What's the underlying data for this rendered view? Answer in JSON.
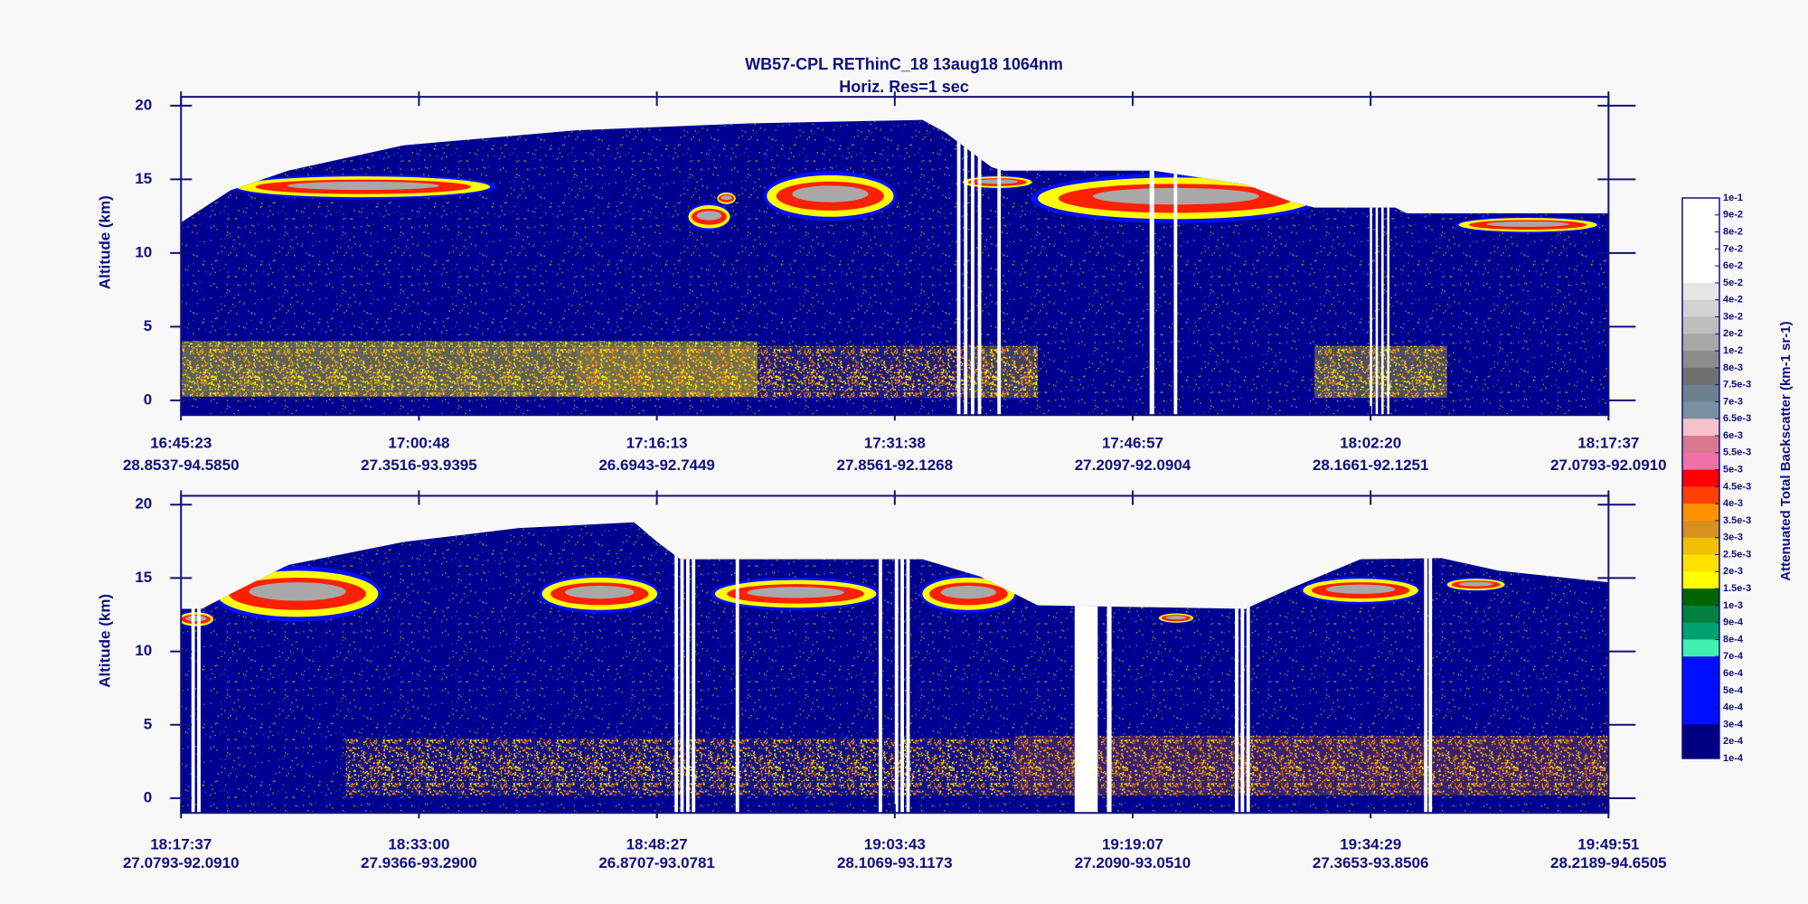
{
  "chart_data": {
    "type": "heatmap",
    "title": "WB57-CPL  REThinC_18  13aug18  1064nm",
    "subtitle": "Horiz. Res=1 sec",
    "ylabel": "Altitude (km)",
    "ylim": [
      -1,
      20.6
    ],
    "yticks": [
      0,
      5,
      10,
      15,
      20
    ],
    "panels": [
      {
        "x_labels": [
          "16:45:23",
          "17:00:48",
          "17:16:13",
          "17:31:38",
          "17:46:57",
          "18:02:20",
          "18:17:37"
        ],
        "x_locations": [
          "28.8537-94.5850",
          "27.3516-93.9395",
          "26.6943-92.7449",
          "27.8561-92.1268",
          "27.2097-92.0904",
          "28.1661-92.1251",
          "27.0793-92.0910"
        ]
      },
      {
        "x_labels": [
          "18:17:37",
          "18:33:00",
          "18:48:27",
          "19:03:43",
          "19:19:07",
          "19:34:29",
          "19:49:51"
        ],
        "x_locations": [
          "27.0793-92.0910",
          "27.9366-93.2900",
          "26.8707-93.0781",
          "28.1069-93.1173",
          "27.2090-93.0510",
          "27.3653-93.8506",
          "28.2189-94.6505"
        ]
      }
    ],
    "colorbar": {
      "label": "Attenuated Total Backscatter (km-1 sr-1)",
      "ticks": [
        {
          "value": 0.1,
          "label": "1e-1"
        },
        {
          "value": 0.09,
          "label": "9e-2"
        },
        {
          "value": 0.08,
          "label": "8e-2"
        },
        {
          "value": 0.07,
          "label": "7e-2"
        },
        {
          "value": 0.06,
          "label": "6e-2"
        },
        {
          "value": 0.05,
          "label": "5e-2"
        },
        {
          "value": 0.04,
          "label": "4e-2"
        },
        {
          "value": 0.03,
          "label": "3e-2"
        },
        {
          "value": 0.02,
          "label": "2e-2"
        },
        {
          "value": 0.01,
          "label": "1e-2"
        },
        {
          "value": 0.008,
          "label": "8e-3"
        },
        {
          "value": 0.0075,
          "label": "7.5e-3"
        },
        {
          "value": 0.007,
          "label": "7e-3"
        },
        {
          "value": 0.0065,
          "label": "6.5e-3"
        },
        {
          "value": 0.006,
          "label": "6e-3"
        },
        {
          "value": 0.0055,
          "label": "5.5e-3"
        },
        {
          "value": 0.005,
          "label": "5e-3"
        },
        {
          "value": 0.0045,
          "label": "4.5e-3"
        },
        {
          "value": 0.004,
          "label": "4e-3"
        },
        {
          "value": 0.0035,
          "label": "3.5e-3"
        },
        {
          "value": 0.003,
          "label": "3e-3"
        },
        {
          "value": 0.0025,
          "label": "2.5e-3"
        },
        {
          "value": 0.002,
          "label": "2e-3"
        },
        {
          "value": 0.0015,
          "label": "1.5e-3"
        },
        {
          "value": 0.001,
          "label": "1e-3"
        },
        {
          "value": 0.0009,
          "label": "9e-4"
        },
        {
          "value": 0.0008,
          "label": "8e-4"
        },
        {
          "value": 0.0007,
          "label": "7e-4"
        },
        {
          "value": 0.0006,
          "label": "6e-4"
        },
        {
          "value": 0.0005,
          "label": "5e-4"
        },
        {
          "value": 0.0004,
          "label": "4e-4"
        },
        {
          "value": 0.0003,
          "label": "3e-4"
        },
        {
          "value": 0.0002,
          "label": "2e-4"
        },
        {
          "value": 0.0001,
          "label": "1e-4"
        }
      ],
      "colors": [
        "#ffffff",
        "#ffffff",
        "#ffffff",
        "#ffffff",
        "#ffffff",
        "#e6e6e6",
        "#d2d2d2",
        "#bebebe",
        "#a8a8a8",
        "#8c8c8c",
        "#707070",
        "#6e8090",
        "#7890a0",
        "#f8c0c8",
        "#d87890",
        "#f070a8",
        "#ff0000",
        "#ff4000",
        "#ff9000",
        "#d89020",
        "#f0c000",
        "#ffe000",
        "#ffff00",
        "#006400",
        "#008040",
        "#00a070",
        "#40f0b0",
        "#0010ff",
        "#0010ff",
        "#0010ff",
        "#0010ff",
        "#000080",
        "#000080"
      ]
    }
  }
}
